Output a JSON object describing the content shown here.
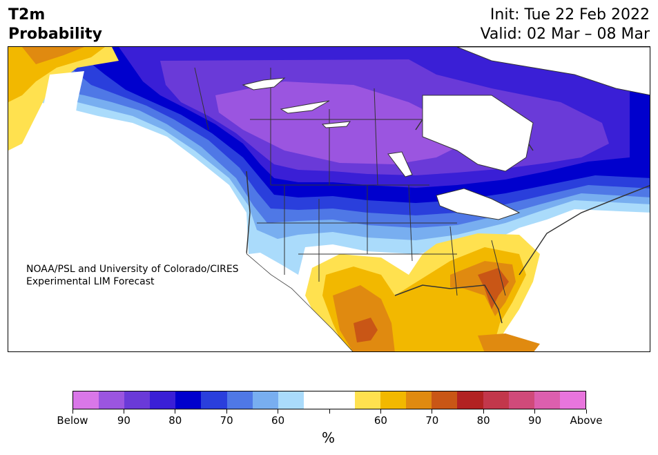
{
  "title": {
    "line1": "T2m",
    "line2": "Probability"
  },
  "init": "Init: Tue 22 Feb 2022",
  "valid": "Valid: 02 Mar – 08 Mar",
  "credit": {
    "line1": "NOAA/PSL and University of Colorado/CIRES",
    "line2": "Experimental LIM Forecast"
  },
  "colorbar": {
    "colors": [
      "#d977e8",
      "#9b55e0",
      "#6a3ad8",
      "#3a1fd6",
      "#0000cd",
      "#2a3fdc",
      "#4f78e6",
      "#78aef0",
      "#aadbfb",
      "#ffffff",
      "#ffffff",
      "#ffe14f",
      "#f2b800",
      "#e08a10",
      "#c95616",
      "#b22222",
      "#c2374b",
      "#d04a7a",
      "#dc5fae",
      "#e875dd"
    ],
    "tick_labels": [
      "Below",
      "90",
      "80",
      "70",
      "60",
      "",
      "60",
      "70",
      "80",
      "90",
      "Above"
    ],
    "unit": "%"
  }
}
